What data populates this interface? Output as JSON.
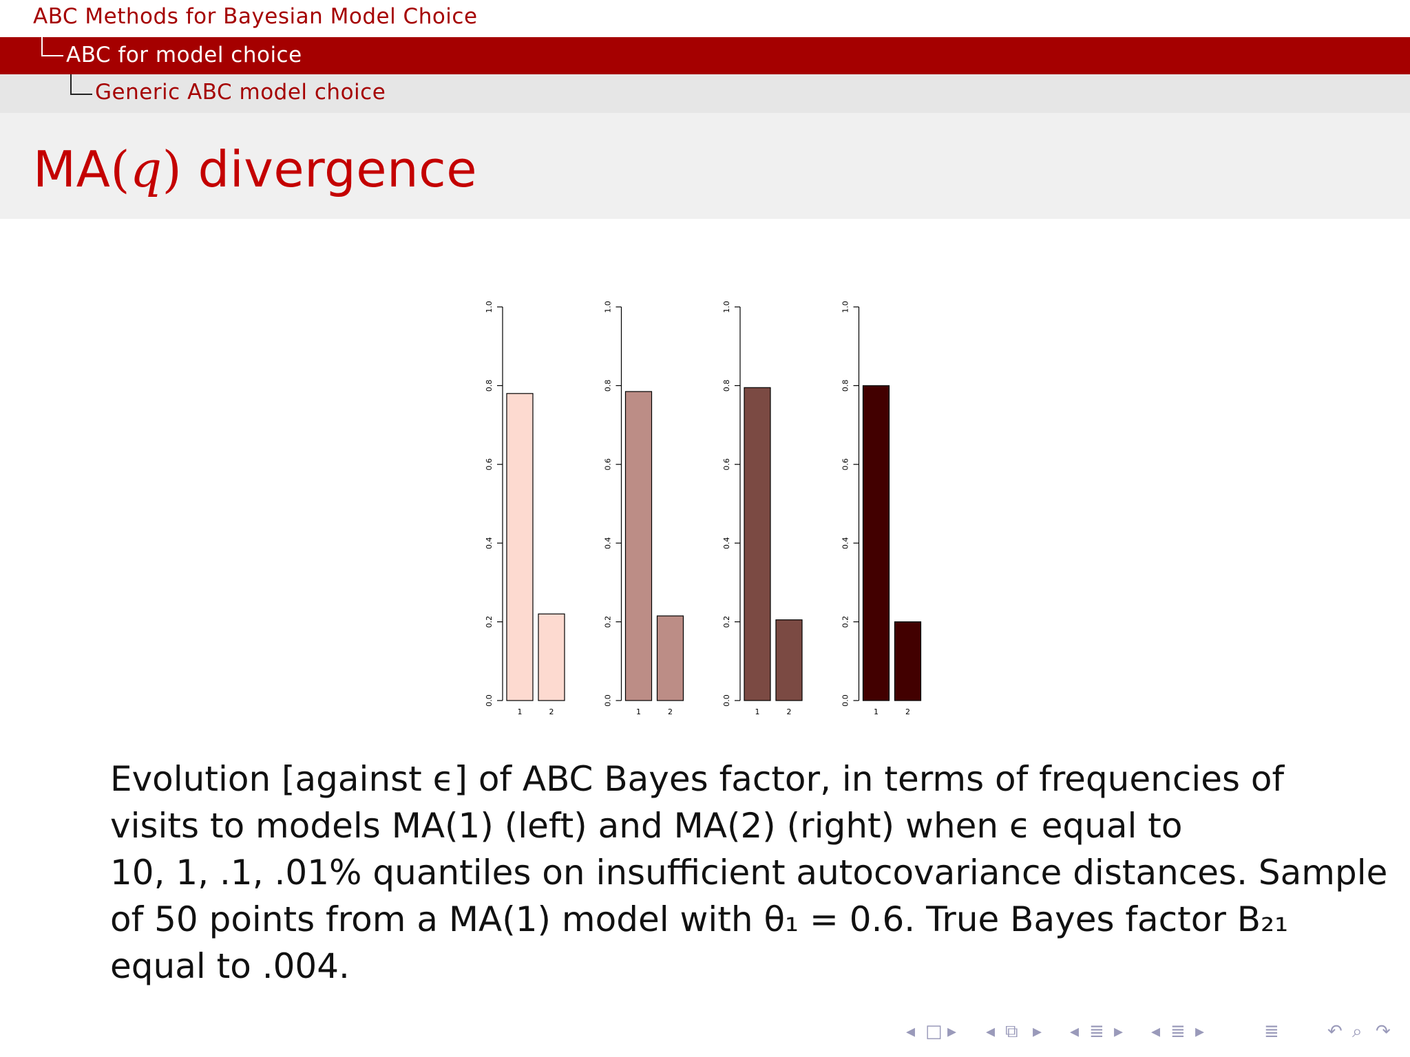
{
  "header": {
    "level1": "ABC Methods for Bayesian Model Choice",
    "level2": "ABC for model choice",
    "level3": "Generic ABC model choice"
  },
  "slide": {
    "title_prefix": "MA",
    "title_open": "(",
    "title_var": "q",
    "title_close": ")",
    "title_suffix": " divergence"
  },
  "caption": {
    "line1": "Evolution [against ϵ] of ABC Bayes factor, in terms of frequencies of",
    "line2": "visits to models MA(1) (left) and MA(2) (right) when ϵ equal to",
    "line3": "10, 1, .1, .01% quantiles on insufficient autocovariance distances.  Sample",
    "line4": "of 50 points from a MA(1) model with θ₁ = 0.6. True Bayes factor B₂₁",
    "line5": "equal to .004."
  },
  "chart_data": [
    {
      "type": "bar",
      "categories": [
        "1",
        "2"
      ],
      "values": [
        0.78,
        0.22
      ],
      "ylim": [
        0,
        1
      ],
      "yticks": [
        "0.0",
        "0.2",
        "0.4",
        "0.6",
        "0.8",
        "1.0"
      ],
      "color": "#fddad0"
    },
    {
      "type": "bar",
      "categories": [
        "1",
        "2"
      ],
      "values": [
        0.785,
        0.215
      ],
      "ylim": [
        0,
        1
      ],
      "yticks": [
        "0.0",
        "0.2",
        "0.4",
        "0.6",
        "0.8",
        "1.0"
      ],
      "color": "#bc8d86"
    },
    {
      "type": "bar",
      "categories": [
        "1",
        "2"
      ],
      "values": [
        0.795,
        0.205
      ],
      "ylim": [
        0,
        1
      ],
      "yticks": [
        "0.0",
        "0.2",
        "0.4",
        "0.6",
        "0.8",
        "1.0"
      ],
      "color": "#7b4a43"
    },
    {
      "type": "bar",
      "categories": [
        "1",
        "2"
      ],
      "values": [
        0.8,
        0.2
      ],
      "ylim": [
        0,
        1
      ],
      "yticks": [
        "0.0",
        "0.2",
        "0.4",
        "0.6",
        "0.8",
        "1.0"
      ],
      "color": "#420000"
    }
  ],
  "nav": {
    "icons": [
      "frame-prev-icon",
      "frame-icon",
      "frame-next-icon",
      "subsection-prev-icon",
      "subsection-icon",
      "subsection-next-icon",
      "section-prev-icon",
      "section-icon",
      "section-next-icon",
      "subsection2-prev-icon",
      "subsection2-icon",
      "subsection2-next-icon",
      "align-icon",
      "back-icon",
      "search-icon",
      "forward-icon"
    ]
  }
}
